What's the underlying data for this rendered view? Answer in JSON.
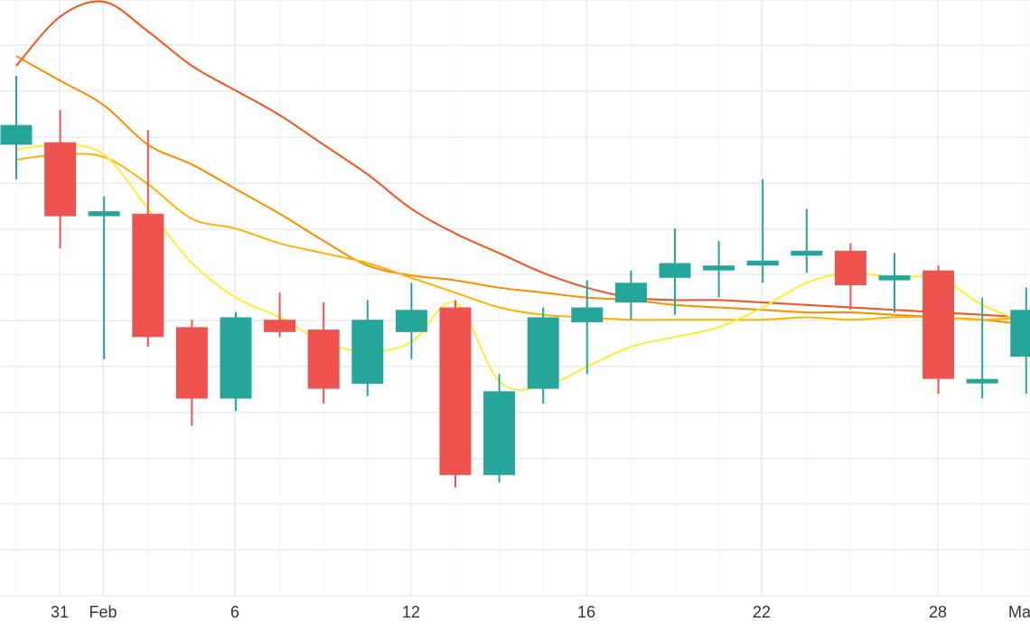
{
  "chart_data": {
    "type": "candlestick",
    "title": "",
    "xlabel": "",
    "ylabel": "",
    "grid": true,
    "legend": "none",
    "colors": {
      "up": "#26a69a",
      "down": "#ef5350",
      "grid": "#e6e6e6",
      "ma_red": "#f4511e",
      "ma_orange": "#fb8c00",
      "ma_amber": "#ffb300",
      "ma_yellow": "#ffee33"
    },
    "x_ticks": [
      "31",
      "Feb",
      "6",
      "12",
      "16",
      "22",
      "28",
      "Ma"
    ],
    "y_range": [
      0,
      100
    ],
    "candles": [
      {
        "date": "Jan 30",
        "open": 71.0,
        "close": 75.0,
        "high": 85.0,
        "low": 64.0
      },
      {
        "date": "Jan 31",
        "open": 71.5,
        "close": 56.5,
        "high": 78.0,
        "low": 50.0
      },
      {
        "date": "Feb 1",
        "open": 56.5,
        "close": 57.5,
        "high": 60.5,
        "low": 27.5
      },
      {
        "date": "Feb 3",
        "open": 57.0,
        "close": 32.0,
        "high": 74.0,
        "low": 30.0
      },
      {
        "date": "Feb 4",
        "open": 34.0,
        "close": 19.5,
        "high": 35.5,
        "low": 14.0
      },
      {
        "date": "Feb 6",
        "open": 19.5,
        "close": 36.0,
        "high": 37.0,
        "low": 17.0
      },
      {
        "date": "Feb 7",
        "open": 35.5,
        "close": 33.0,
        "high": 41.0,
        "low": 32.0
      },
      {
        "date": "Feb 9",
        "open": 33.5,
        "close": 21.5,
        "high": 39.0,
        "low": 18.5
      },
      {
        "date": "Feb 10",
        "open": 22.5,
        "close": 35.5,
        "high": 39.5,
        "low": 20.0
      },
      {
        "date": "Feb 12",
        "open": 33.0,
        "close": 37.5,
        "high": 43.0,
        "low": 27.5
      },
      {
        "date": "Feb 13",
        "open": 38.0,
        "close": 4.0,
        "high": 39.5,
        "low": 1.5
      },
      {
        "date": "Feb 14",
        "open": 4.0,
        "close": 21.0,
        "high": 24.5,
        "low": 2.5
      },
      {
        "date": "Feb 15",
        "open": 21.5,
        "close": 36.0,
        "high": 38.0,
        "low": 18.5
      },
      {
        "date": "Feb 16",
        "open": 35.0,
        "close": 38.0,
        "high": 43.5,
        "low": 24.5
      },
      {
        "date": "Feb 17",
        "open": 39.0,
        "close": 43.0,
        "high": 45.5,
        "low": 35.5
      },
      {
        "date": "Feb 19",
        "open": 44.0,
        "close": 47.0,
        "high": 54.0,
        "low": 36.5
      },
      {
        "date": "Feb 20",
        "open": 45.5,
        "close": 46.5,
        "high": 51.5,
        "low": 40.0
      },
      {
        "date": "Feb 22",
        "open": 46.5,
        "close": 47.5,
        "high": 64.0,
        "low": 43.0
      },
      {
        "date": "Feb 23",
        "open": 48.5,
        "close": 49.5,
        "high": 58.0,
        "low": 45.0
      },
      {
        "date": "Feb 25",
        "open": 49.5,
        "close": 42.5,
        "high": 51.0,
        "low": 37.5
      },
      {
        "date": "Feb 26",
        "open": 43.5,
        "close": 44.5,
        "high": 49.0,
        "low": 37.0
      },
      {
        "date": "Feb 28",
        "open": 45.5,
        "close": 23.5,
        "high": 46.5,
        "low": 20.5
      },
      {
        "date": "Feb 29",
        "open": 23.0,
        "close": 23.5,
        "high": 40.0,
        "low": 19.5
      },
      {
        "date": "Mar 1",
        "open": 28.0,
        "close": 37.5,
        "high": 42.0,
        "low": 20.5
      }
    ],
    "moving_averages": [
      {
        "color_key": "ma_red",
        "values": [
          87,
          97,
          100,
          94,
          87,
          82,
          77,
          71,
          65,
          58,
          53,
          49,
          45,
          42,
          40,
          39.5,
          39.5,
          39,
          38.5,
          38,
          37.5,
          37,
          36.5,
          36
        ]
      },
      {
        "color_key": "ma_orange",
        "values": [
          89,
          84,
          79,
          71,
          67,
          62,
          57,
          51.5,
          46.5,
          44.5,
          43.5,
          42,
          41,
          40,
          39.5,
          38.5,
          38,
          37.5,
          37,
          37,
          36.5,
          36,
          35.5,
          34.5
        ]
      },
      {
        "color_key": "ma_amber",
        "values": [
          68,
          69,
          68.5,
          63,
          56,
          54,
          51,
          49,
          47,
          44,
          41,
          38,
          36.5,
          36,
          35.5,
          35.5,
          35.5,
          35.5,
          36,
          35.5,
          36,
          36,
          35.5,
          36
        ]
      },
      {
        "color_key": "ma_yellow",
        "values": [
          70,
          71,
          69,
          58,
          47,
          40,
          36,
          31,
          29,
          31,
          39,
          23,
          22,
          26,
          30,
          32,
          34,
          38,
          43,
          45,
          44,
          44,
          38.5,
          35
        ]
      }
    ]
  }
}
